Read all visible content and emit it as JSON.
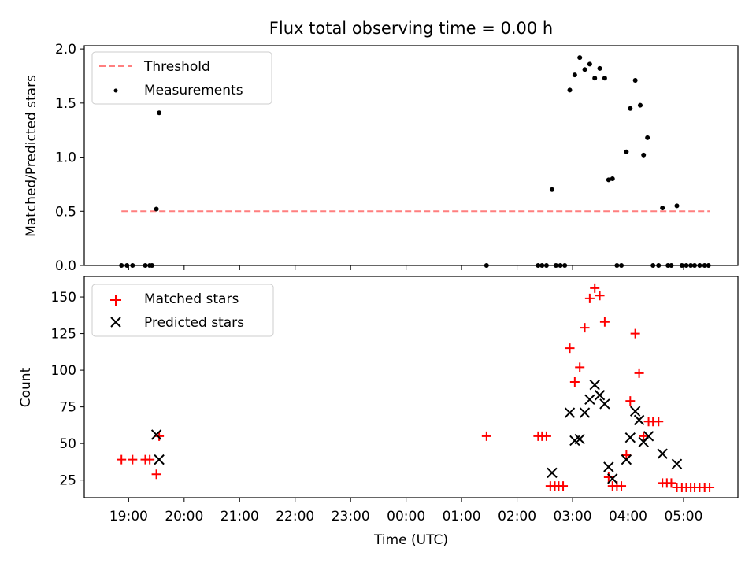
{
  "chart_data": [
    {
      "type": "scatter",
      "title": "Flux total observing time = 0.00 h",
      "ylabel": "Matched/Predicted stars",
      "xlabel": "",
      "xlim_hours": [
        18.2,
        29.98
      ],
      "ylim": [
        0,
        2.03
      ],
      "yticks": [
        "0.0",
        "0.5",
        "1.0",
        "1.5",
        "2.0"
      ],
      "ytick_values": [
        0,
        0.5,
        1.0,
        1.5,
        2.0
      ],
      "legend_position": "top-left",
      "threshold": {
        "name": "Threshold",
        "value": 0.5,
        "x_range_hours": [
          18.87,
          29.47
        ],
        "color": "#ff7f7f"
      },
      "series": [
        {
          "name": "Measurements",
          "color": "#000000",
          "x_hours": [
            18.87,
            18.97,
            19.07,
            19.3,
            19.38,
            19.42,
            19.5,
            19.55,
            25.45,
            26.38,
            26.45,
            26.53,
            26.63,
            26.7,
            26.78,
            26.86,
            26.95,
            27.04,
            27.13,
            27.22,
            27.31,
            27.4,
            27.49,
            27.58,
            27.65,
            27.72,
            27.8,
            27.88,
            27.97,
            28.04,
            28.13,
            28.22,
            28.28,
            28.35,
            28.45,
            28.55,
            28.62,
            28.72,
            28.78,
            28.88,
            28.97,
            29.05,
            29.13,
            29.2,
            29.29,
            29.38,
            29.45
          ],
          "y": [
            0,
            0,
            0,
            0,
            0,
            0,
            0.52,
            1.41,
            0,
            0,
            0,
            0,
            0.7,
            0,
            0,
            0,
            1.62,
            1.76,
            1.92,
            1.81,
            1.86,
            1.73,
            1.82,
            1.73,
            0.79,
            0.8,
            0,
            0,
            1.05,
            1.45,
            1.71,
            1.48,
            1.02,
            1.18,
            0,
            0,
            0.53,
            0,
            0,
            0.55,
            0,
            0,
            0,
            0,
            0,
            0,
            0
          ]
        }
      ]
    },
    {
      "type": "scatter",
      "title": "",
      "ylabel": "Count",
      "xlabel": "Time (UTC)",
      "xlim_hours": [
        18.2,
        29.98
      ],
      "ylim": [
        13,
        164
      ],
      "yticks": [
        "25",
        "50",
        "75",
        "100",
        "125",
        "150"
      ],
      "ytick_values": [
        25,
        50,
        75,
        100,
        125,
        150
      ],
      "xticks": [
        "19:00",
        "20:00",
        "21:00",
        "22:00",
        "23:00",
        "00:00",
        "01:00",
        "02:00",
        "03:00",
        "04:00",
        "05:00"
      ],
      "xtick_hours": [
        19,
        20,
        21,
        22,
        23,
        24,
        25,
        26,
        27,
        28,
        29
      ],
      "legend_position": "top-left",
      "series": [
        {
          "name": "Matched stars",
          "marker": "plus",
          "color": "#ff0000",
          "x_hours": [
            18.87,
            19.07,
            19.3,
            19.38,
            19.5,
            19.55,
            25.45,
            26.38,
            26.45,
            26.53,
            26.6,
            26.68,
            26.75,
            26.83,
            26.95,
            27.04,
            27.13,
            27.22,
            27.31,
            27.4,
            27.49,
            27.58,
            27.65,
            27.72,
            27.8,
            27.88,
            27.97,
            28.04,
            28.13,
            28.2,
            28.28,
            28.37,
            28.45,
            28.55,
            28.62,
            28.7,
            28.78,
            28.88,
            28.97,
            29.05,
            29.13,
            29.2,
            29.29,
            29.38,
            29.47
          ],
          "y": [
            39,
            39,
            39,
            39,
            29,
            55,
            55,
            55,
            55,
            55,
            21,
            21,
            21,
            21,
            115,
            92,
            102,
            129,
            149,
            156,
            151,
            133,
            27,
            21,
            21,
            21,
            42,
            79,
            125,
            98,
            55,
            65,
            65,
            65,
            23,
            23,
            23,
            20,
            20,
            20,
            20,
            20,
            20,
            20,
            20
          ]
        },
        {
          "name": "Predicted stars",
          "marker": "x",
          "color": "#000000",
          "x_hours": [
            19.5,
            19.55,
            26.63,
            26.95,
            27.04,
            27.13,
            27.22,
            27.31,
            27.4,
            27.49,
            27.58,
            27.65,
            27.72,
            27.97,
            28.04,
            28.13,
            28.2,
            28.28,
            28.37,
            28.62,
            28.88
          ],
          "y": [
            56,
            39,
            30,
            71,
            52,
            53,
            71,
            80,
            90,
            83,
            77,
            34,
            26,
            39,
            54,
            72,
            66,
            51,
            55,
            43,
            36
          ]
        }
      ]
    }
  ]
}
